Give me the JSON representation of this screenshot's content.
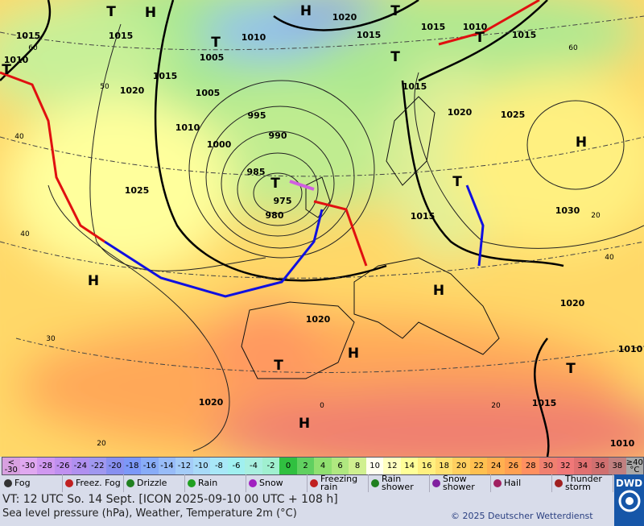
{
  "map": {
    "pressure_labels": [
      "1015",
      "1015",
      "1010",
      "T",
      "T",
      "H",
      "1010",
      "T",
      "1005",
      "H",
      "1020",
      "1015",
      "T",
      "1015",
      "1010",
      "T",
      "1015",
      "T",
      "1015",
      "1020",
      "1005",
      "1015",
      "1020",
      "1025",
      "995",
      "1010",
      "990",
      "1000",
      "H",
      "985",
      "T",
      "975",
      "980",
      "1025",
      "T",
      "1015",
      "1030",
      "H",
      "H",
      "1020",
      "1020",
      "H",
      "T",
      "T",
      "1010",
      "1015",
      "1020",
      "H",
      "1010"
    ],
    "grid_labels": [
      "60",
      "50",
      "40",
      "40",
      "30",
      "20",
      "0",
      "20",
      "60",
      "40",
      "20"
    ]
  },
  "scale": [
    {
      "label": "< -30",
      "color": "#d8a0e0"
    },
    {
      "label": "-30",
      "color": "#e0a8f0"
    },
    {
      "label": "-28",
      "color": "#d098f0"
    },
    {
      "label": "-26",
      "color": "#c090f0"
    },
    {
      "label": "-24",
      "color": "#b090f0"
    },
    {
      "label": "-22",
      "color": "#a098f0"
    },
    {
      "label": "-20",
      "color": "#8890f0"
    },
    {
      "label": "-18",
      "color": "#7c98f8"
    },
    {
      "label": "-16",
      "color": "#88acf8"
    },
    {
      "label": "-14",
      "color": "#98bcf8"
    },
    {
      "label": "-12",
      "color": "#a4ccf8"
    },
    {
      "label": "-10",
      "color": "#a8daf8"
    },
    {
      "label": "-8",
      "color": "#a8e8f8"
    },
    {
      "label": "-6",
      "color": "#a0f0f0"
    },
    {
      "label": "-4",
      "color": "#a8f0e0"
    },
    {
      "label": "-2",
      "color": "#a0f0d0"
    },
    {
      "label": "0",
      "color": "#30c040"
    },
    {
      "label": "2",
      "color": "#60d060"
    },
    {
      "label": "4",
      "color": "#90e070"
    },
    {
      "label": "6",
      "color": "#b0e880"
    },
    {
      "label": "8",
      "color": "#d0f090"
    },
    {
      "label": "10",
      "color": "#fffff0"
    },
    {
      "label": "12",
      "color": "#ffffc0"
    },
    {
      "label": "14",
      "color": "#ffff98"
    },
    {
      "label": "16",
      "color": "#fff080"
    },
    {
      "label": "18",
      "color": "#ffe070"
    },
    {
      "label": "20",
      "color": "#ffd060"
    },
    {
      "label": "22",
      "color": "#ffc050"
    },
    {
      "label": "24",
      "color": "#ffb050"
    },
    {
      "label": "26",
      "color": "#ffa050"
    },
    {
      "label": "28",
      "color": "#ff9060"
    },
    {
      "label": "30",
      "color": "#f08070"
    },
    {
      "label": "32",
      "color": "#f07878"
    },
    {
      "label": "34",
      "color": "#e07070"
    },
    {
      "label": "36",
      "color": "#d07070"
    },
    {
      "label": "38",
      "color": "#c08080"
    },
    {
      "label": "≥40 °C",
      "color": "#a8a8a8"
    }
  ],
  "weather_legend": [
    "Fog",
    "Freez. Fog",
    "Drizzle",
    "Rain",
    "Snow",
    "Freezing rain",
    "Rain shower",
    "Snow shower",
    "Hail",
    "Thunder storm"
  ],
  "footer": {
    "valid_time": "VT: 12 UTC So.  14 Sept. [ICON 2025-09-10  00 UTC + 108 h]",
    "description": "Sea level pressure (hPa), Weather, Temperature 2m (°C)",
    "copyright": "© 2025 Deutscher Wetterdienst",
    "logo": "DWD"
  }
}
